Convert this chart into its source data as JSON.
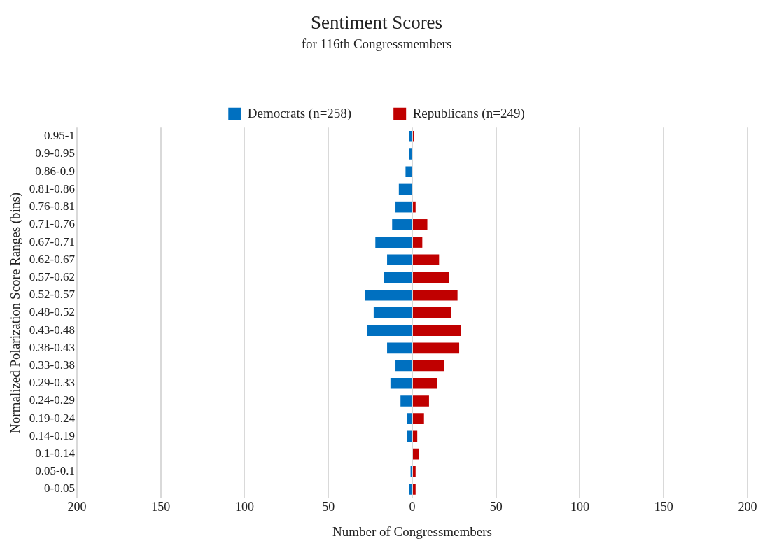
{
  "chart_data": {
    "type": "bar",
    "orientation": "horizontal",
    "title": "Sentiment Scores",
    "subtitle": "for 116th Congressmembers",
    "xlabel": "Number of Congressmembers",
    "ylabel": "Normalized Polarization Score Ranges (bins)",
    "categories": [
      "0.95-1",
      "0.9-0.95",
      "0.86-0.9",
      "0.81-0.86",
      "0.76-0.81",
      "0.71-0.76",
      "0.67-0.71",
      "0.62-0.67",
      "0.57-0.62",
      "0.52-0.57",
      "0.48-0.52",
      "0.43-0.48",
      "0.38-0.43",
      "0.33-0.38",
      "0.29-0.33",
      "0.24-0.29",
      "0.19-0.24",
      "0.14-0.19",
      "0.1-0.14",
      "0.05-0.1",
      "0-0.05"
    ],
    "series": [
      {
        "name": "Democrats (n=258)",
        "color": "#0070c0",
        "values": [
          -2,
          -2,
          -4,
          -8,
          -10,
          -12,
          -22,
          -15,
          -17,
          -28,
          -23,
          -27,
          -15,
          -10,
          -13,
          -7,
          -3,
          -3,
          0,
          -1,
          -2
        ]
      },
      {
        "name": "Republicans (n=249)",
        "color": "#c00000",
        "values": [
          1,
          0,
          0,
          0,
          2,
          9,
          6,
          16,
          22,
          27,
          23,
          29,
          28,
          19,
          15,
          10,
          7,
          3,
          4,
          2,
          2
        ]
      }
    ],
    "xlim": [
      -200,
      200
    ],
    "xticks": [
      {
        "value": -200,
        "label": "200"
      },
      {
        "value": -150,
        "label": "150"
      },
      {
        "value": -100,
        "label": "100"
      },
      {
        "value": -50,
        "label": "50"
      },
      0,
      50,
      100,
      150,
      200
    ],
    "stacked": true,
    "grid": "x",
    "legend": "top"
  }
}
